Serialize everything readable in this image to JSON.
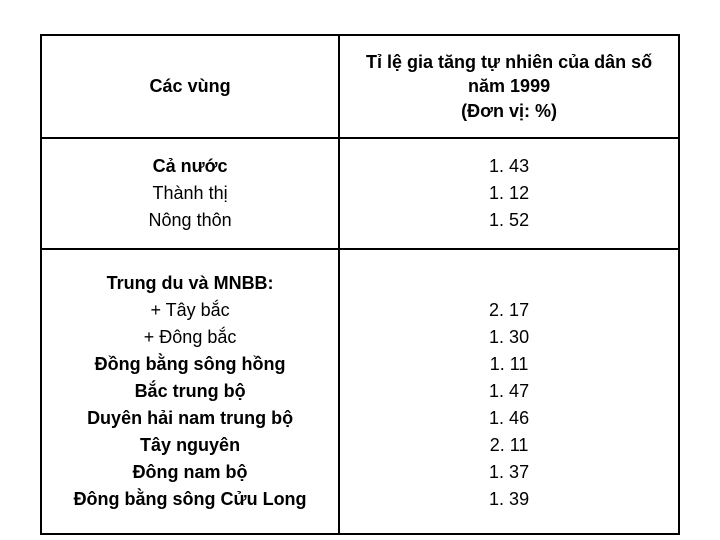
{
  "header": {
    "left": "Các vùng",
    "right_line1": "Tỉ lệ gia tăng tự nhiên của dân số năm 1999",
    "right_line2": "(Đơn vị: %)"
  },
  "group1": {
    "labels": [
      "Cả nước",
      "Thành thị",
      "Nông thôn"
    ],
    "bold_flags": [
      true,
      false,
      false
    ],
    "values": [
      "1. 43",
      "1. 12",
      "1. 52"
    ]
  },
  "group2": {
    "labels": [
      "Trung du và MNBB:",
      "+ Tây bắc",
      "+ Đông bắc",
      "Đồng bằng sông hồng",
      "Bắc trung bộ",
      "Duyên hải nam trung bộ",
      "Tây nguyên",
      "Đông nam bộ",
      "Đông bằng sông Cửu Long"
    ],
    "bold_flags": [
      true,
      false,
      false,
      true,
      true,
      true,
      true,
      true,
      true
    ],
    "values": [
      "",
      "2. 17",
      "1. 30",
      "1. 11",
      "1. 47",
      "1. 46",
      "2. 11",
      "1. 37",
      "1. 39"
    ]
  },
  "style": {
    "border_color": "#000000",
    "background_color": "#ffffff",
    "font_size_pt": 18,
    "font_family": "Arial"
  }
}
